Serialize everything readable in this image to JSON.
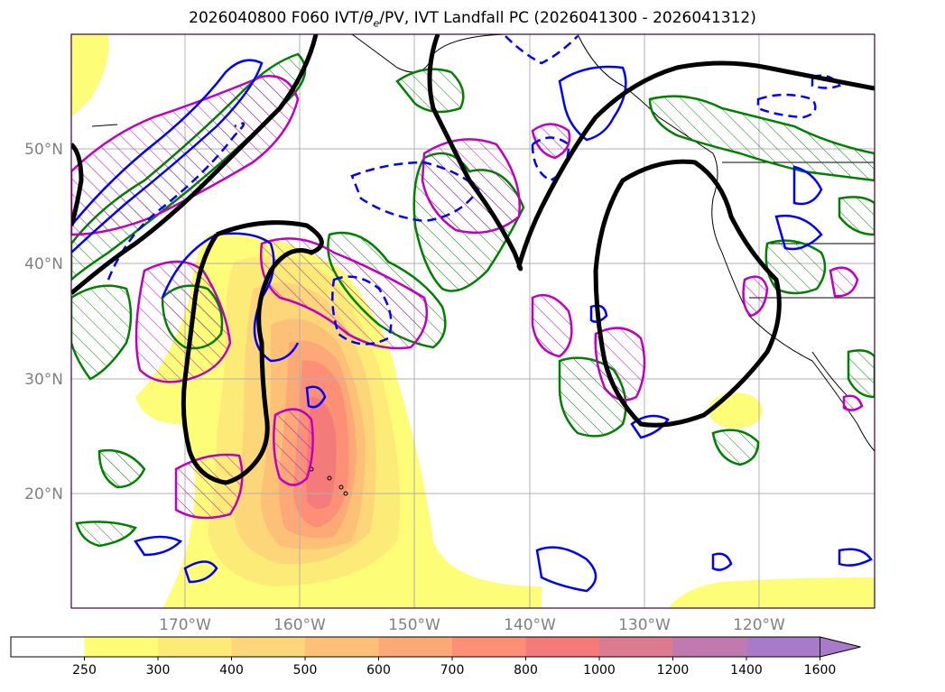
{
  "title": "2026040800 F060 IVT/θe/PV, IVT Landfall PC (2026041300 - 2026041312)",
  "title_parts": {
    "prefix": "2026040800 F060 IVT/",
    "theta": "θ",
    "sub": "e",
    "suffix": "/PV, IVT Landfall PC (2026041300 - 2026041312)"
  },
  "map": {
    "lat_labels": [
      "50°N",
      "40°N",
      "30°N",
      "20°N"
    ],
    "lon_labels": [
      "170°W",
      "160°W",
      "150°W",
      "140°W",
      "130°W",
      "120°W"
    ],
    "gridlines": true,
    "colors": {
      "landfall_pc": "#000000",
      "theta_e": "#0000ff",
      "pv_green": "#008000",
      "pv_magenta": "#c000c0",
      "coast": "#000000",
      "grid": "#b0b0b0"
    }
  },
  "colorbar": {
    "ticks": [
      "250",
      "300",
      "400",
      "500",
      "600",
      "700",
      "800",
      "1000",
      "1200",
      "1400",
      "1600"
    ],
    "colors": [
      "#ffffff",
      "#fdfd77",
      "#fdeb77",
      "#fdd679",
      "#fdc077",
      "#fda877",
      "#fd8f77",
      "#f57a7a",
      "#dc7a90",
      "#c07ab0",
      "#a87ac8"
    ],
    "extend": "max"
  }
}
